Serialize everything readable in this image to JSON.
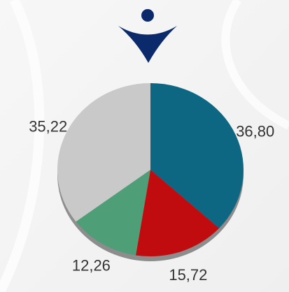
{
  "chart_data": {
    "type": "pie",
    "values": [
      36.8,
      15.72,
      12.26,
      35.22
    ],
    "value_labels": [
      "36,80",
      "15,72",
      "12,26",
      "35,22"
    ],
    "colors": [
      "#0d6783",
      "#c10c0f",
      "#4e9f78",
      "#c9c9c9"
    ]
  }
}
